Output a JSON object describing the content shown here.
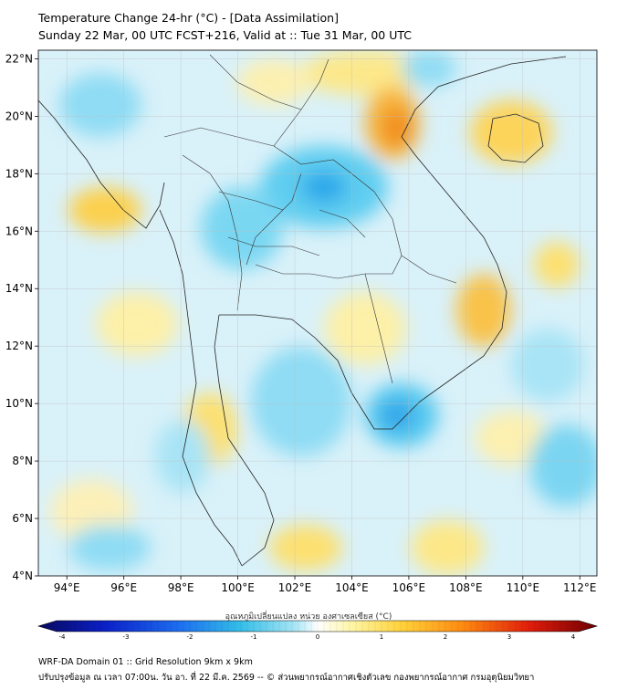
{
  "header": {
    "title": "Temperature Change 24-hr (°C) - [Data Assimilation]",
    "subtitle": "Sunday 22 Mar, 00 UTC FCST+216, Valid at :: Tue 31 Mar, 00 UTC"
  },
  "map": {
    "lat_labels": [
      "22°N",
      "20°N",
      "18°N",
      "16°N",
      "14°N",
      "12°N",
      "10°N",
      "8°N",
      "6°N",
      "4°N"
    ],
    "lat_values": [
      22,
      20,
      18,
      16,
      14,
      12,
      10,
      8,
      6,
      4
    ],
    "lon_labels": [
      "94°E",
      "96°E",
      "98°E",
      "100°E",
      "102°E",
      "104°E",
      "106°E",
      "108°E",
      "110°E",
      "112°E"
    ],
    "lon_values": [
      94,
      96,
      98,
      100,
      102,
      104,
      106,
      108,
      110,
      112
    ],
    "lat_range": [
      4,
      22.3
    ],
    "lon_range": [
      93,
      112.6
    ]
  },
  "colorbar": {
    "label": "อุณหภูมิเปลี่ยนแปลง หน่วย องศาเซลเซียส (°C)",
    "tick_labels": [
      "-4",
      "-3",
      "-2",
      "-1",
      "0",
      "1",
      "2",
      "3",
      "4"
    ],
    "range": [
      -4,
      4
    ],
    "colors": [
      "#08085e",
      "#0b20c8",
      "#1d6cf0",
      "#32bde8",
      "#a8e6f6",
      "#ffffff",
      "#fff6a8",
      "#ffd23a",
      "#ff8a10",
      "#e01c0c",
      "#6e0000"
    ]
  },
  "footer": {
    "line1": "WRF-DA Domain 01 :: Grid Resolution 9km x 9km",
    "line2": "ปรับปรุงข้อมูล ณ เวลา 07:00น. วัน อา. ที่ 22 มี.ค. 2569 -- © ส่วนพยากรณ์อากาศเชิงตัวเลข กองพยากรณ์อากาศ กรมอุตุนิยมวิทยา"
  }
}
